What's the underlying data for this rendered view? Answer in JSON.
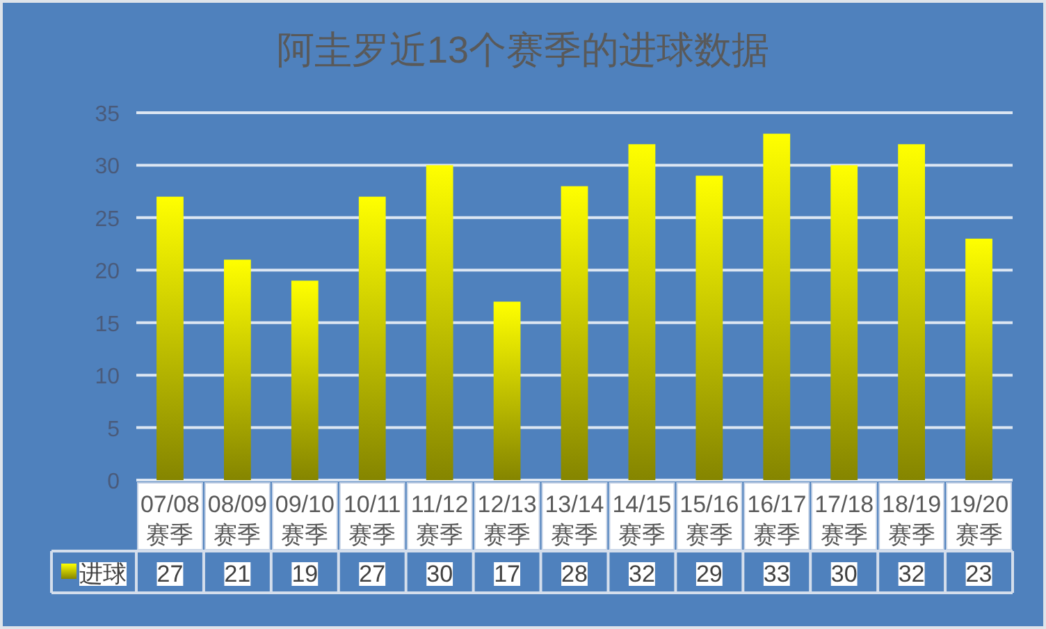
{
  "chart_data": {
    "type": "bar",
    "title": "阿圭罗近13个赛季的进球数据",
    "categories": [
      "07/08 赛季",
      "08/09 赛季",
      "09/10 赛季",
      "10/11 赛季",
      "11/12 赛季",
      "12/13 赛季",
      "13/14 赛季",
      "14/15 赛季",
      "15/16 赛季",
      "16/17 赛季",
      "17/18 赛季",
      "18/19 赛季",
      "19/20 赛季"
    ],
    "series": [
      {
        "name": "进球",
        "color": "#ffff00",
        "values": [
          27,
          21,
          19,
          27,
          30,
          17,
          28,
          32,
          29,
          33,
          30,
          32,
          23
        ]
      }
    ],
    "ylim": [
      0,
      35
    ],
    "yticks": [
      0,
      5,
      10,
      15,
      20,
      25,
      30,
      35
    ],
    "grid": "y",
    "legend": "bottom left",
    "data_labels": true
  }
}
